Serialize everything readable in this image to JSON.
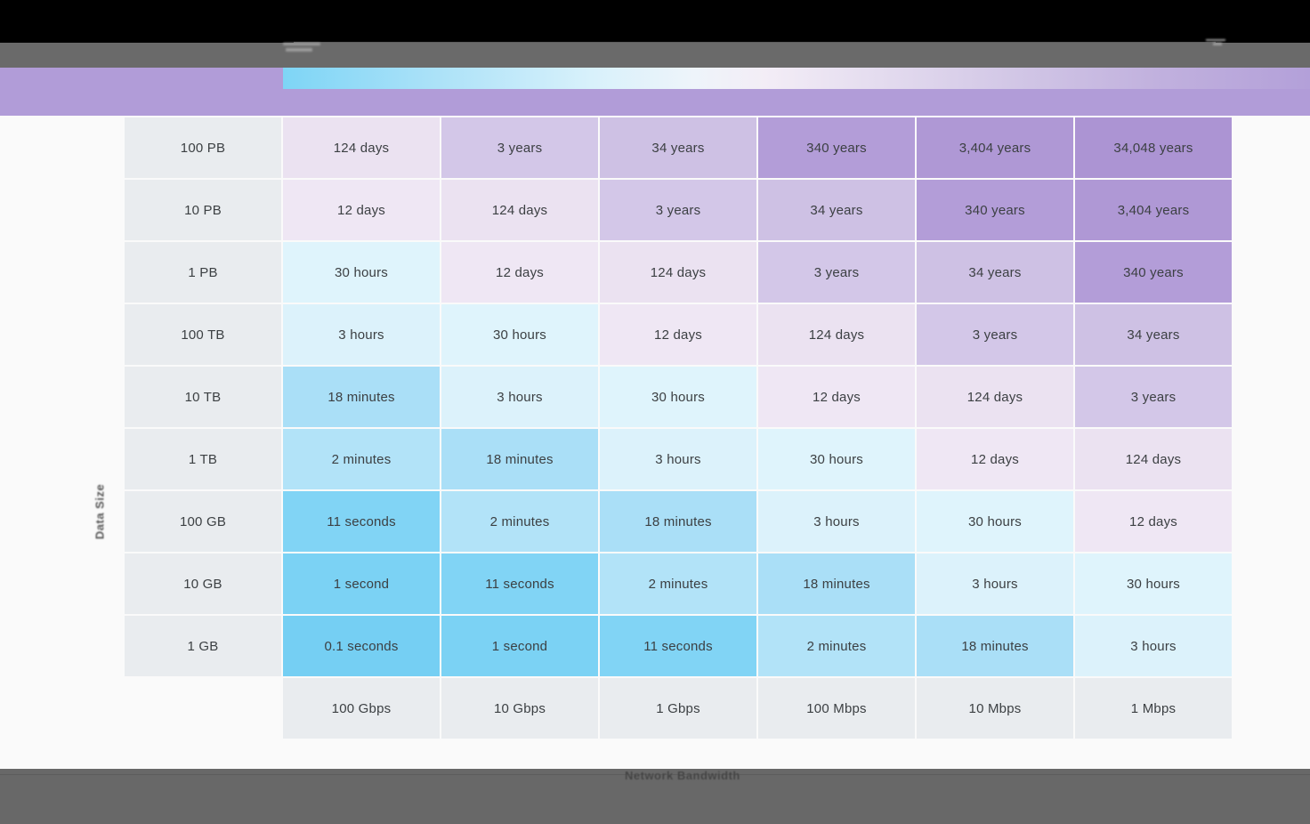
{
  "colors": {
    "titlebar": "#000000",
    "chromebar": "#6a6a6a",
    "footerbar": "#686868",
    "banner_purple": "#b19cd8",
    "canvas_background": "#fafafa",
    "cell_text": "#3c4043",
    "label_cell_background": "#e9ecef"
  },
  "banner": {
    "gradient_stops": [
      [
        "#7ed5f6",
        0
      ],
      [
        "#a9e1f8",
        14
      ],
      [
        "#d8f1fb",
        30
      ],
      [
        "#eef4fa",
        40
      ],
      [
        "#f3edf6",
        47
      ],
      [
        "#e4dcef",
        58
      ],
      [
        "#d2c7e6",
        71
      ],
      [
        "#c1b1de",
        85
      ],
      [
        "#b3a0d9",
        100
      ]
    ]
  },
  "chart_data": {
    "type": "heatmap",
    "title": "",
    "xlabel": "Network Bandwidth",
    "ylabel": "Data Size",
    "legend_position": "top",
    "grid": false,
    "x_categories": [
      "100 Gbps",
      "10 Gbps",
      "1 Gbps",
      "100 Mbps",
      "10 Mbps",
      "1 Mbps"
    ],
    "y_categories": [
      "100 PB",
      "10 PB",
      "1 PB",
      "100 TB",
      "10 TB",
      "1 TB",
      "100 GB",
      "10 GB",
      "1 GB"
    ],
    "values": [
      [
        "124 days",
        "3 years",
        "34 years",
        "340 years",
        "3,404 years",
        "34,048 years"
      ],
      [
        "12 days",
        "124 days",
        "3 years",
        "34 years",
        "340 years",
        "3,404 years"
      ],
      [
        "30 hours",
        "12 days",
        "124 days",
        "3 years",
        "34 years",
        "340 years"
      ],
      [
        "3 hours",
        "30 hours",
        "12 days",
        "124 days",
        "3 years",
        "34 years"
      ],
      [
        "18 minutes",
        "3 hours",
        "30 hours",
        "12 days",
        "124 days",
        "3 years"
      ],
      [
        "2 minutes",
        "18 minutes",
        "3 hours",
        "30 hours",
        "12 days",
        "124 days"
      ],
      [
        "11 seconds",
        "2 minutes",
        "18 minutes",
        "3 hours",
        "30 hours",
        "12 days"
      ],
      [
        "1 second",
        "11 seconds",
        "2 minutes",
        "18 minutes",
        "3 hours",
        "30 hours"
      ],
      [
        "0.1 seconds",
        "1 second",
        "11 seconds",
        "2 minutes",
        "18 minutes",
        "3 hours"
      ]
    ],
    "value_colors": {
      "0.1 seconds": "#75cff3",
      "1 second": "#7bd2f4",
      "11 seconds": "#81d4f5",
      "2 minutes": "#b2e3f8",
      "18 minutes": "#aadff7",
      "3 hours": "#dcf2fb",
      "30 hours": "#dff4fc",
      "12 days": "#efe7f4",
      "124 days": "#ebe2f1",
      "3 years": "#d3c7e8",
      "34 years": "#cec1e4",
      "340 years": "#b39dd8",
      "3,404 years": "#af98d5",
      "34,048 years": "#ac94d3"
    }
  }
}
